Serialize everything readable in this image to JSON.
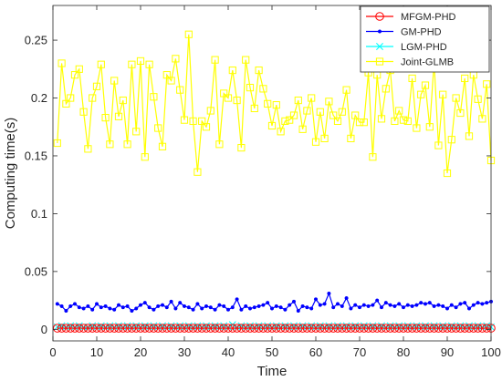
{
  "chart_data": {
    "type": "line",
    "xlabel": "Time",
    "ylabel": "Computing time(s)",
    "xlim": [
      0,
      100
    ],
    "ylim": [
      -0.01,
      0.28
    ],
    "xticks": [
      0,
      10,
      20,
      30,
      40,
      50,
      60,
      70,
      80,
      90,
      100
    ],
    "xtick_labels": [
      "0",
      "10",
      "20",
      "30",
      "40",
      "50",
      "60",
      "70",
      "80",
      "90",
      "100"
    ],
    "yticks": [
      0,
      0.05,
      0.1,
      0.15,
      0.2,
      0.25
    ],
    "ytick_labels": [
      "0",
      "0.05",
      "0.1",
      "0.15",
      "0.2",
      "0.25"
    ],
    "grid": false,
    "legend_position": "top-right",
    "x": [
      1,
      2,
      3,
      4,
      5,
      6,
      7,
      8,
      9,
      10,
      11,
      12,
      13,
      14,
      15,
      16,
      17,
      18,
      19,
      20,
      21,
      22,
      23,
      24,
      25,
      26,
      27,
      28,
      29,
      30,
      31,
      32,
      33,
      34,
      35,
      36,
      37,
      38,
      39,
      40,
      41,
      42,
      43,
      44,
      45,
      46,
      47,
      48,
      49,
      50,
      51,
      52,
      53,
      54,
      55,
      56,
      57,
      58,
      59,
      60,
      61,
      62,
      63,
      64,
      65,
      66,
      67,
      68,
      69,
      70,
      71,
      72,
      73,
      74,
      75,
      76,
      77,
      78,
      79,
      80,
      81,
      82,
      83,
      84,
      85,
      86,
      87,
      88,
      89,
      90,
      91,
      92,
      93,
      94,
      95,
      96,
      97,
      98,
      99,
      100
    ],
    "series": [
      {
        "name": "MFGM-PHD",
        "color": "#ff0000",
        "marker": "circle",
        "values": [
          0.001,
          0.001,
          0.001,
          0.001,
          0.001,
          0.001,
          0.001,
          0.001,
          0.001,
          0.001,
          0.001,
          0.001,
          0.001,
          0.001,
          0.001,
          0.001,
          0.001,
          0.001,
          0.001,
          0.001,
          0.001,
          0.001,
          0.001,
          0.001,
          0.001,
          0.001,
          0.001,
          0.001,
          0.001,
          0.001,
          0.001,
          0.001,
          0.001,
          0.001,
          0.001,
          0.001,
          0.001,
          0.001,
          0.001,
          0.001,
          0.001,
          0.001,
          0.001,
          0.001,
          0.001,
          0.001,
          0.001,
          0.001,
          0.001,
          0.001,
          0.001,
          0.001,
          0.001,
          0.001,
          0.001,
          0.001,
          0.001,
          0.001,
          0.001,
          0.001,
          0.001,
          0.001,
          0.001,
          0.001,
          0.001,
          0.001,
          0.001,
          0.001,
          0.001,
          0.001,
          0.001,
          0.001,
          0.001,
          0.001,
          0.001,
          0.001,
          0.001,
          0.001,
          0.001,
          0.001,
          0.001,
          0.001,
          0.001,
          0.001,
          0.001,
          0.001,
          0.001,
          0.001,
          0.001,
          0.001,
          0.001,
          0.001,
          0.001,
          0.001,
          0.001,
          0.001,
          0.001,
          0.001,
          0.001,
          0.001
        ]
      },
      {
        "name": "GM-PHD",
        "color": "#0000ff",
        "marker": "dot",
        "values": [
          0.022,
          0.02,
          0.016,
          0.02,
          0.022,
          0.019,
          0.018,
          0.02,
          0.017,
          0.022,
          0.019,
          0.02,
          0.018,
          0.017,
          0.021,
          0.019,
          0.02,
          0.016,
          0.018,
          0.021,
          0.023,
          0.019,
          0.017,
          0.02,
          0.021,
          0.019,
          0.024,
          0.018,
          0.023,
          0.02,
          0.019,
          0.017,
          0.022,
          0.018,
          0.02,
          0.019,
          0.017,
          0.021,
          0.02,
          0.017,
          0.019,
          0.026,
          0.017,
          0.02,
          0.018,
          0.019,
          0.02,
          0.021,
          0.023,
          0.018,
          0.02,
          0.019,
          0.017,
          0.021,
          0.024,
          0.016,
          0.02,
          0.019,
          0.018,
          0.026,
          0.021,
          0.022,
          0.031,
          0.019,
          0.022,
          0.02,
          0.027,
          0.018,
          0.021,
          0.019,
          0.021,
          0.02,
          0.021,
          0.025,
          0.019,
          0.023,
          0.021,
          0.02,
          0.022,
          0.019,
          0.021,
          0.02,
          0.021,
          0.023,
          0.022,
          0.023,
          0.02,
          0.021,
          0.02,
          0.018,
          0.021,
          0.019,
          0.022,
          0.023,
          0.018,
          0.021,
          0.023,
          0.022,
          0.023,
          0.024
        ]
      },
      {
        "name": "LGM-PHD",
        "color": "#00ffff",
        "marker": "x",
        "values": [
          0.002,
          0.003,
          0.002,
          0.003,
          0.002,
          0.003,
          0.002,
          0.002,
          0.003,
          0.002,
          0.003,
          0.002,
          0.003,
          0.002,
          0.003,
          0.002,
          0.003,
          0.002,
          0.003,
          0.002,
          0.003,
          0.002,
          0.003,
          0.002,
          0.003,
          0.002,
          0.003,
          0.002,
          0.003,
          0.002,
          0.003,
          0.002,
          0.003,
          0.002,
          0.003,
          0.002,
          0.003,
          0.002,
          0.003,
          0.002,
          0.004,
          0.002,
          0.003,
          0.002,
          0.003,
          0.002,
          0.003,
          0.002,
          0.003,
          0.002,
          0.003,
          0.002,
          0.003,
          0.002,
          0.003,
          0.002,
          0.003,
          0.002,
          0.003,
          0.002,
          0.003,
          0.002,
          0.003,
          0.002,
          0.003,
          0.002,
          0.003,
          0.002,
          0.003,
          0.002,
          0.003,
          0.002,
          0.003,
          0.002,
          0.003,
          0.002,
          0.003,
          0.002,
          0.003,
          0.002,
          0.003,
          0.002,
          0.003,
          0.002,
          0.003,
          0.002,
          0.003,
          0.002,
          0.003,
          0.002,
          0.003,
          0.002,
          0.003,
          0.002,
          0.003,
          0.002,
          0.003,
          0.002,
          0.003,
          0.002
        ]
      },
      {
        "name": "Joint-GLMB",
        "color": "#ffff00",
        "marker": "square",
        "values": [
          0.161,
          0.23,
          0.195,
          0.2,
          0.22,
          0.225,
          0.188,
          0.156,
          0.2,
          0.21,
          0.229,
          0.183,
          0.16,
          0.215,
          0.184,
          0.198,
          0.16,
          0.229,
          0.171,
          0.232,
          0.149,
          0.229,
          0.201,
          0.174,
          0.158,
          0.22,
          0.215,
          0.234,
          0.207,
          0.181,
          0.255,
          0.18,
          0.136,
          0.18,
          0.175,
          0.189,
          0.233,
          0.16,
          0.204,
          0.2,
          0.224,
          0.198,
          0.157,
          0.233,
          0.209,
          0.191,
          0.224,
          0.208,
          0.195,
          0.176,
          0.194,
          0.171,
          0.18,
          0.181,
          0.185,
          0.198,
          0.173,
          0.189,
          0.2,
          0.162,
          0.188,
          0.165,
          0.197,
          0.185,
          0.18,
          0.188,
          0.207,
          0.165,
          0.185,
          0.179,
          0.179,
          0.222,
          0.149,
          0.22,
          0.182,
          0.208,
          0.224,
          0.18,
          0.189,
          0.181,
          0.18,
          0.217,
          0.174,
          0.203,
          0.211,
          0.175,
          0.231,
          0.159,
          0.203,
          0.135,
          0.164,
          0.2,
          0.187,
          0.217,
          0.167,
          0.22,
          0.199,
          0.182,
          0.212,
          0.146
        ]
      }
    ]
  }
}
